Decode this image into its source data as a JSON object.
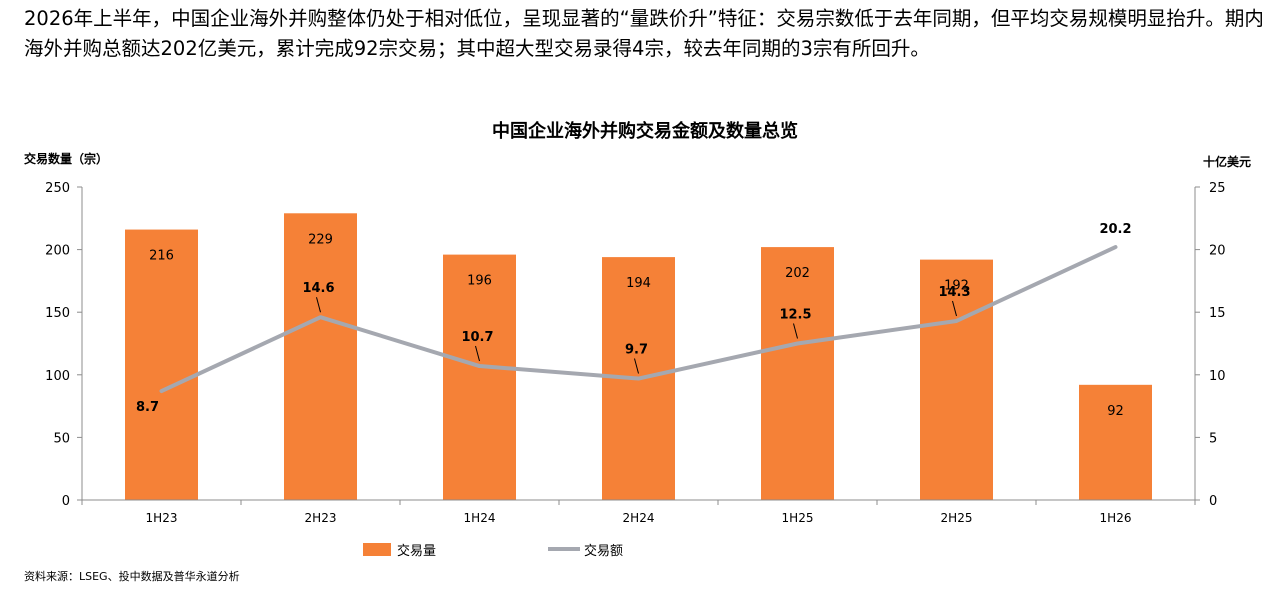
{
  "intro_text": "2026年上半年，中国企业海外并购整体仍处于相对低位，呈现显著的“量跌价升”特征：交易宗数低于去年同期，但平均交易规模明显抬升。期内海外并购总额达202亿美元，累计完成92宗交易；其中超大型交易录得4宗，较去年同期的3宗有所回升。",
  "source_note": "资料来源：LSEG、投中数据及普华永道分析",
  "colors": {
    "bar": "#F58137",
    "line": "#A5A8B0",
    "axis": "#8C8C8C"
  },
  "chart_data": {
    "type": "bar+line",
    "title": "中国企业海外并购交易金额及数量总览",
    "categories": [
      "1H23",
      "2H23",
      "1H24",
      "2H24",
      "1H25",
      "2H25",
      "1H26"
    ],
    "series": [
      {
        "name": "交易量",
        "type": "bar",
        "axis": "left",
        "values": [
          216,
          229,
          196,
          194,
          202,
          192,
          92
        ]
      },
      {
        "name": "交易额",
        "type": "line",
        "axis": "right",
        "values": [
          8.7,
          14.6,
          10.7,
          9.7,
          12.5,
          14.3,
          20.2
        ]
      }
    ],
    "left_axis": {
      "label": "交易数量（宗）",
      "range": [
        0,
        250
      ],
      "ticks": [
        0,
        50,
        100,
        150,
        200,
        250
      ]
    },
    "right_axis": {
      "label": "十亿美元",
      "range": [
        0,
        25
      ],
      "ticks": [
        0,
        5,
        10,
        15,
        20,
        25
      ]
    },
    "grid": false,
    "legend_position": "bottom"
  }
}
